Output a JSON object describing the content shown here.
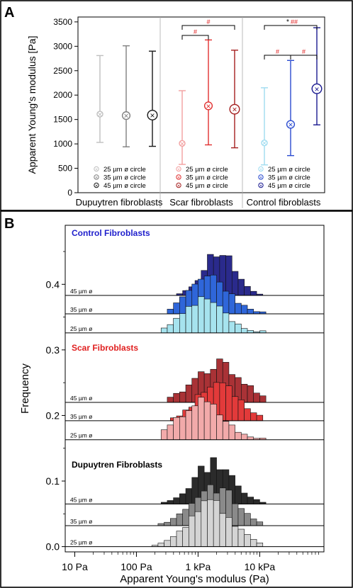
{
  "chart_data": [
    {
      "panel_label": "A",
      "type": "errorbar",
      "ylabel": "Apparent Young's modulus [Pa]",
      "ylim": [
        0,
        3600
      ],
      "yticks": [
        0,
        500,
        1000,
        1500,
        2000,
        2500,
        3000,
        3500
      ],
      "groups": [
        {
          "name": "Dupuytren fibroblasts",
          "series": [
            {
              "name": "25 µm ø circle",
              "mean": 1610,
              "low": 1030,
              "high": 2810,
              "color": "#bfbfbf"
            },
            {
              "name": "35 µm ø circle",
              "mean": 1580,
              "low": 940,
              "high": 3010,
              "color": "#808080"
            },
            {
              "name": "45 µm ø circle",
              "mean": 1590,
              "low": 950,
              "high": 2900,
              "color": "#1a1a1a"
            }
          ]
        },
        {
          "name": "Scar fibroblasts",
          "series": [
            {
              "name": "25 µm ø circle",
              "mean": 1010,
              "low": 580,
              "high": 2090,
              "color": "#f2a0a0"
            },
            {
              "name": "35 µm ø circle",
              "mean": 1780,
              "low": 980,
              "high": 3130,
              "color": "#e03030"
            },
            {
              "name": "45 µm ø circle",
              "mean": 1710,
              "low": 920,
              "high": 2920,
              "color": "#a52020"
            }
          ],
          "significance": [
            {
              "from": 0,
              "to": 1,
              "label": "#"
            },
            {
              "from": 0,
              "to": 2,
              "label": "#"
            }
          ]
        },
        {
          "name": "Control fibroblasts",
          "series": [
            {
              "name": "25 µm ø circle",
              "mean": 1020,
              "low": 570,
              "high": 2150,
              "color": "#9fdcf0"
            },
            {
              "name": "35 µm ø circle",
              "mean": 1400,
              "low": 760,
              "high": 2710,
              "color": "#2a4bd0"
            },
            {
              "name": "45 µm ø circle",
              "mean": 2130,
              "low": 1390,
              "high": 3380,
              "color": "#1a1a90"
            }
          ],
          "significance": [
            {
              "from": 0,
              "to": 1,
              "label": "#"
            },
            {
              "from": 1,
              "to": 2,
              "label": "#"
            },
            {
              "from": 0,
              "to": 2,
              "label_black": "*",
              "label_red": "##"
            }
          ]
        }
      ]
    },
    {
      "panel_label": "B",
      "type": "histogram",
      "xlabel": "Apparent Young's modulus (Pa)",
      "ylabel": "Frequency",
      "xscale": "log",
      "xlim": [
        7,
        110000
      ],
      "xticks": [
        {
          "v": 10,
          "label": "10 Pa"
        },
        {
          "v": 100,
          "label": "100 Pa"
        },
        {
          "v": 1000,
          "label": "1 kPa"
        },
        {
          "v": 10000,
          "label": "10 kPa"
        }
      ],
      "ylim": [
        -0.008,
        0.49
      ],
      "yticks": [
        {
          "v": 0,
          "label": "0.0"
        },
        {
          "v": 0.1,
          "label": "0.1"
        },
        {
          "v": 0.2,
          "label": "0.2"
        },
        {
          "v": 0.3,
          "label": "0.3"
        },
        {
          "v": 0.4,
          "label": "0.4"
        }
      ],
      "groups": [
        {
          "name": "Control Fibroblasts",
          "name_color": "#1f1fcc",
          "series": [
            {
              "name": "45 µm ø",
              "baseline": 0.383,
              "peak": 0.067,
              "log_center": 3.34,
              "log_width": 0.25,
              "log_min": 2.65,
              "log_max": 4.05,
              "seed": 11,
              "color": "#2a2a8c"
            },
            {
              "name": "35 µm ø",
              "baseline": 0.355,
              "peak": 0.057,
              "log_center": 3.18,
              "log_width": 0.32,
              "log_min": 2.5,
              "log_max": 4.05,
              "seed": 23,
              "color": "#2f66d9"
            },
            {
              "name": "25 µm ø",
              "baseline": 0.326,
              "peak": 0.048,
              "log_center": 3.1,
              "log_width": 0.33,
              "log_min": 2.4,
              "log_max": 4.05,
              "seed": 37,
              "color": "#a6e3ee"
            }
          ]
        },
        {
          "name": "Scar Fibroblasts",
          "name_color": "#e02020",
          "series": [
            {
              "name": "45 µm ø",
              "baseline": 0.22,
              "peak": 0.058,
              "log_center": 3.33,
              "log_width": 0.38,
              "log_min": 2.5,
              "log_max": 4.05,
              "seed": 41,
              "color": "#a93236"
            },
            {
              "name": "35 µm ø",
              "baseline": 0.192,
              "peak": 0.058,
              "log_center": 3.34,
              "log_width": 0.33,
              "log_min": 2.55,
              "log_max": 4.05,
              "seed": 53,
              "color": "#e23a3a"
            },
            {
              "name": "25 µm ø",
              "baseline": 0.163,
              "peak": 0.058,
              "log_center": 3.05,
              "log_width": 0.35,
              "log_min": 2.4,
              "log_max": 4.05,
              "seed": 67,
              "color": "#f2aaaa"
            }
          ]
        },
        {
          "name": "Dupuytren Fibroblasts",
          "name_color": "#000000",
          "series": [
            {
              "name": "45 µm ø",
              "baseline": 0.065,
              "peak": 0.06,
              "log_center": 3.25,
              "log_width": 0.33,
              "log_min": 2.4,
              "log_max": 4.05,
              "seed": 71,
              "color": "#2b2b2b"
            },
            {
              "name": "35 µm ø",
              "baseline": 0.032,
              "peak": 0.06,
              "log_center": 3.25,
              "log_width": 0.35,
              "log_min": 2.35,
              "log_max": 4.05,
              "seed": 83,
              "color": "#8a8a8a"
            },
            {
              "name": "25 µm ø",
              "baseline": 0.0,
              "peak": 0.065,
              "log_center": 3.22,
              "log_width": 0.36,
              "log_min": 2.25,
              "log_max": 4.05,
              "seed": 97,
              "color": "#d4d4d4"
            }
          ]
        }
      ]
    }
  ]
}
